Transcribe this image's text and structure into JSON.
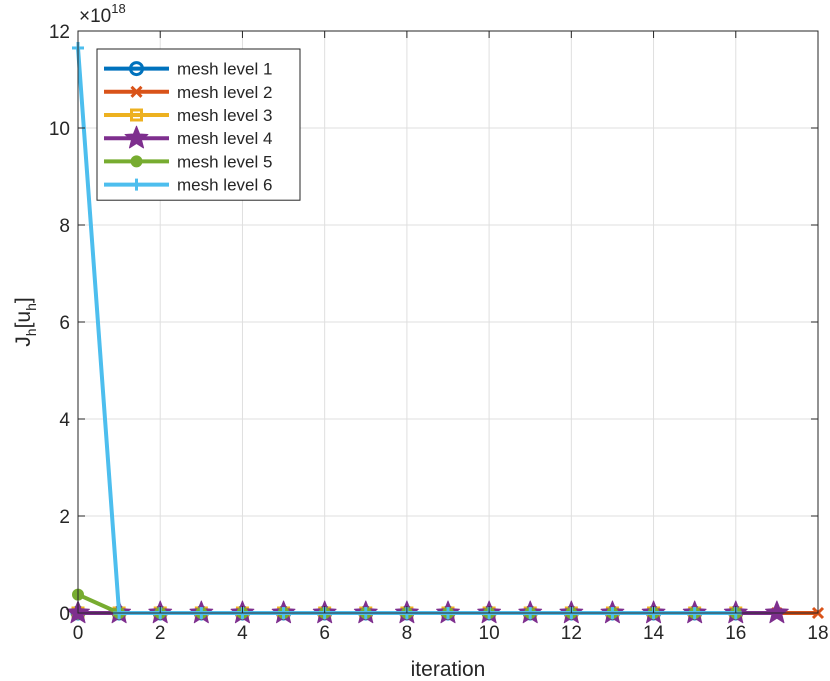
{
  "chart_data": {
    "type": "line",
    "title": "",
    "xlabel": "iteration",
    "ylabel_main": "J",
    "ylabel_sub1": "h",
    "ylabel_mid": "[u",
    "ylabel_sub2": "h",
    "ylabel_end": "]",
    "y_exponent_prefix": "×10",
    "y_exponent": "18",
    "xlim": [
      0,
      18
    ],
    "ylim": [
      0,
      12
    ],
    "x_ticks": [
      "0",
      "2",
      "4",
      "6",
      "8",
      "10",
      "12",
      "14",
      "16",
      "18"
    ],
    "y_ticks": [
      "0",
      "2",
      "4",
      "6",
      "8",
      "10",
      "12"
    ],
    "grid": true,
    "legend_position": "top-left",
    "series": [
      {
        "name": "mesh level 1",
        "color": "#0072BD",
        "marker": "circle",
        "x": [
          0,
          1,
          2,
          3,
          4,
          5,
          6,
          7,
          8,
          9,
          10,
          11,
          12,
          13,
          14,
          15,
          16
        ],
        "y": [
          0,
          0,
          0,
          0,
          0,
          0,
          0,
          0,
          0,
          0,
          0,
          0,
          0,
          0,
          0,
          0,
          0
        ]
      },
      {
        "name": "mesh level 2",
        "color": "#D95319",
        "marker": "x",
        "x": [
          0,
          1,
          2,
          3,
          4,
          5,
          6,
          7,
          8,
          9,
          10,
          11,
          12,
          13,
          14,
          15,
          16,
          17,
          18
        ],
        "y": [
          0,
          0,
          0,
          0,
          0,
          0,
          0,
          0,
          0,
          0,
          0,
          0,
          0,
          0,
          0,
          0,
          0,
          0,
          0
        ]
      },
      {
        "name": "mesh level 3",
        "color": "#EDB120",
        "marker": "square",
        "x": [
          0,
          1,
          2,
          3,
          4,
          5,
          6,
          7,
          8,
          9,
          10,
          11,
          12,
          13,
          14,
          15,
          16
        ],
        "y": [
          0,
          0,
          0,
          0,
          0,
          0,
          0,
          0,
          0,
          0,
          0,
          0,
          0,
          0,
          0,
          0,
          0
        ]
      },
      {
        "name": "mesh level 4",
        "color": "#7E2F8E",
        "marker": "star",
        "x": [
          0,
          1,
          2,
          3,
          4,
          5,
          6,
          7,
          8,
          9,
          10,
          11,
          12,
          13,
          14,
          15,
          16,
          17
        ],
        "y": [
          0,
          0,
          0,
          0,
          0,
          0,
          0,
          0,
          0,
          0,
          0,
          0,
          0,
          0,
          0,
          0,
          0,
          0
        ]
      },
      {
        "name": "mesh level 5",
        "color": "#77AC30",
        "marker": "dot",
        "x": [
          0,
          1,
          2,
          3,
          4,
          5,
          6,
          7,
          8,
          9,
          10,
          11,
          12,
          13,
          14,
          15,
          16
        ],
        "y": [
          0.38,
          0,
          0,
          0,
          0,
          0,
          0,
          0,
          0,
          0,
          0,
          0,
          0,
          0,
          0,
          0,
          0
        ]
      },
      {
        "name": "mesh level 6",
        "color": "#4DBEEE",
        "marker": "plus",
        "x": [
          0,
          1,
          2,
          3,
          4,
          5,
          6,
          7,
          8,
          9,
          10,
          11,
          12,
          13,
          14,
          15,
          16
        ],
        "y": [
          11.65,
          0,
          0,
          0,
          0,
          0,
          0,
          0,
          0,
          0,
          0,
          0,
          0,
          0,
          0,
          0,
          0
        ]
      }
    ]
  }
}
